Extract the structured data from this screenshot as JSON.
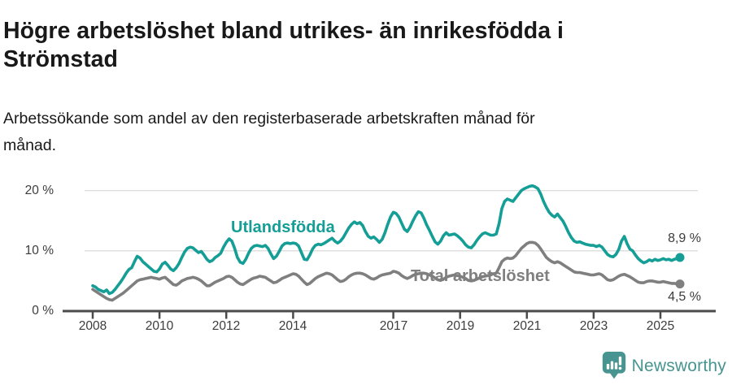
{
  "header": {
    "title": "Högre arbetslöshet bland utrikes- än inrikesfödda i Strömstad",
    "subtitle": "Arbetssökande som andel av den registerbaserade arbetskraften månad för månad."
  },
  "chart_data": {
    "type": "line",
    "unit": "%",
    "x_start": "2008-01",
    "x_end": "2025-08",
    "x_frequency": "monthly",
    "x_tick_years": [
      2008,
      2010,
      2012,
      2014,
      2017,
      2019,
      2021,
      2023,
      2025
    ],
    "y_ticks": [
      {
        "value": 0,
        "label": "0 %"
      },
      {
        "value": 10,
        "label": "10 %"
      },
      {
        "value": 20,
        "label": "20 %"
      }
    ],
    "ylim": [
      0,
      22
    ],
    "grid": "horizontal",
    "legend_position": "inline-labels",
    "colors": {
      "axis": "#4a4a4a",
      "grid": "#dcdcdc",
      "tick_text": "#3c3c3c"
    },
    "series": [
      {
        "name": "Utlandsfödda",
        "color": "#149e96",
        "end_label": "8,9 %",
        "end_value": 8.9,
        "values": [
          4.2,
          4.0,
          3.6,
          3.4,
          3.2,
          3.5,
          2.9,
          3.1,
          3.6,
          4.2,
          4.8,
          5.5,
          6.3,
          6.9,
          7.2,
          8.2,
          9.1,
          8.8,
          8.2,
          7.8,
          7.4,
          7.0,
          6.6,
          6.5,
          7.0,
          7.8,
          8.1,
          7.6,
          7.0,
          6.7,
          7.2,
          7.9,
          8.9,
          9.8,
          10.4,
          10.6,
          10.5,
          10.1,
          9.7,
          9.9,
          9.3,
          8.6,
          8.2,
          8.4,
          8.9,
          9.2,
          9.6,
          10.6,
          11.4,
          12.0,
          11.6,
          10.4,
          8.9,
          8.1,
          7.9,
          8.6,
          9.6,
          10.4,
          10.8,
          10.9,
          10.8,
          10.7,
          10.9,
          10.4,
          9.5,
          8.7,
          9.1,
          9.9,
          10.8,
          11.2,
          11.3,
          11.2,
          11.3,
          11.2,
          10.8,
          9.7,
          8.6,
          8.5,
          9.3,
          10.3,
          10.9,
          11.1,
          11.0,
          11.2,
          11.5,
          11.8,
          12.1,
          11.6,
          11.3,
          11.6,
          12.2,
          13.0,
          13.8,
          14.4,
          14.8,
          14.5,
          14.7,
          14.2,
          13.2,
          12.4,
          12.1,
          12.3,
          11.9,
          11.4,
          11.9,
          13.0,
          14.4,
          15.6,
          16.4,
          16.2,
          15.6,
          14.6,
          13.6,
          13.2,
          13.9,
          14.9,
          15.8,
          16.5,
          16.3,
          15.4,
          14.3,
          13.4,
          12.4,
          11.5,
          11.1,
          11.6,
          12.5,
          13.0,
          12.6,
          12.7,
          12.8,
          12.5,
          12.1,
          11.6,
          11.0,
          10.6,
          10.5,
          11.0,
          11.7,
          12.3,
          12.8,
          13.0,
          12.8,
          12.6,
          12.6,
          12.8,
          14.5,
          17.0,
          18.2,
          18.6,
          18.4,
          18.2,
          18.8,
          19.4,
          20.0,
          20.3,
          20.5,
          20.7,
          20.8,
          20.6,
          20.3,
          19.4,
          18.2,
          17.2,
          16.4,
          15.9,
          15.6,
          16.1,
          15.5,
          14.9,
          14.0,
          13.0,
          12.2,
          11.6,
          11.4,
          11.5,
          11.3,
          11.1,
          11.0,
          10.9,
          10.9,
          10.7,
          10.9,
          10.6,
          10.0,
          9.4,
          9.1,
          9.0,
          9.4,
          10.2,
          11.6,
          12.4,
          11.2,
          10.3,
          10.0,
          9.3,
          8.7,
          8.3,
          8.0,
          8.2,
          8.5,
          8.3,
          8.6,
          8.4,
          8.5,
          8.7,
          8.5,
          8.6,
          8.4,
          8.6,
          8.7,
          8.9
        ]
      },
      {
        "name": "Total arbetslöshet",
        "color": "#7f7f7f",
        "end_label": "4,5 %",
        "end_value": 4.5,
        "values": [
          3.6,
          3.3,
          3.0,
          2.7,
          2.4,
          2.1,
          1.9,
          1.8,
          2.1,
          2.4,
          2.7,
          3.0,
          3.4,
          3.8,
          4.2,
          4.6,
          5.0,
          5.2,
          5.3,
          5.4,
          5.5,
          5.6,
          5.5,
          5.4,
          5.3,
          5.5,
          5.6,
          5.2,
          4.8,
          4.4,
          4.3,
          4.6,
          5.0,
          5.2,
          5.4,
          5.5,
          5.6,
          5.5,
          5.3,
          5.0,
          4.6,
          4.2,
          4.2,
          4.5,
          4.8,
          5.0,
          5.2,
          5.4,
          5.7,
          5.8,
          5.6,
          5.2,
          4.8,
          4.5,
          4.4,
          4.7,
          5.0,
          5.3,
          5.5,
          5.6,
          5.8,
          5.7,
          5.6,
          5.3,
          5.0,
          4.7,
          4.8,
          5.1,
          5.4,
          5.6,
          5.8,
          6.0,
          6.2,
          6.1,
          5.8,
          5.3,
          4.8,
          4.4,
          4.6,
          5.0,
          5.4,
          5.7,
          5.9,
          6.1,
          6.3,
          6.2,
          6.0,
          5.6,
          5.2,
          4.9,
          5.0,
          5.3,
          5.7,
          6.0,
          6.2,
          6.3,
          6.3,
          6.2,
          6.0,
          5.7,
          5.4,
          5.3,
          5.5,
          5.8,
          6.0,
          6.1,
          6.2,
          6.3,
          6.6,
          6.5,
          6.3,
          5.9,
          5.6,
          5.4,
          5.6,
          5.9,
          6.1,
          6.2,
          6.3,
          6.3,
          6.2,
          6.0,
          5.8,
          5.5,
          5.2,
          5.1,
          5.3,
          5.6,
          5.8,
          5.9,
          6.0,
          5.9,
          5.8,
          5.6,
          5.4,
          5.1,
          5.0,
          5.1,
          5.3,
          5.5,
          5.7,
          5.8,
          5.9,
          6.0,
          6.2,
          6.3,
          7.2,
          8.2,
          8.6,
          8.8,
          8.7,
          8.8,
          9.2,
          9.8,
          10.4,
          10.8,
          11.2,
          11.4,
          11.4,
          11.3,
          10.9,
          10.3,
          9.6,
          8.9,
          8.5,
          8.2,
          8.0,
          8.2,
          8.0,
          7.7,
          7.4,
          7.1,
          6.8,
          6.5,
          6.4,
          6.4,
          6.3,
          6.2,
          6.1,
          6.0,
          6.0,
          6.1,
          6.2,
          6.0,
          5.6,
          5.2,
          5.1,
          5.2,
          5.5,
          5.8,
          6.0,
          6.1,
          5.9,
          5.7,
          5.4,
          5.1,
          4.8,
          4.7,
          4.7,
          4.9,
          5.0,
          5.0,
          4.9,
          4.8,
          4.8,
          4.9,
          4.8,
          4.7,
          4.6,
          4.6,
          4.5,
          4.5
        ]
      }
    ]
  },
  "footer": {
    "brand": "Newsworthy",
    "brand_color": "#479490",
    "logo_icon": "newsworthy-speech-bubble-bar-chart-icon"
  }
}
